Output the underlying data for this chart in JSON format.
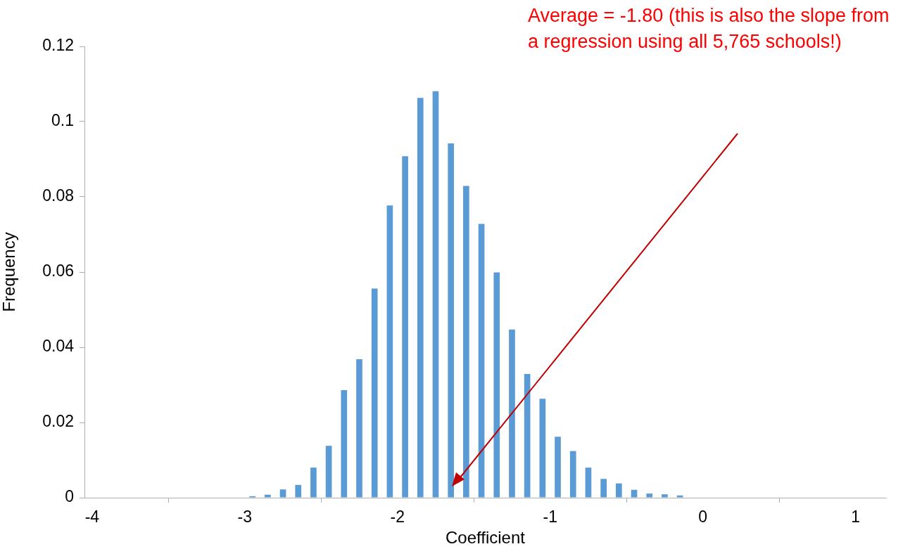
{
  "chart_data": {
    "type": "bar",
    "xlabel": "Coefficient",
    "ylabel": "Frequency",
    "annotations": [
      "Average = -1.80 (this is also the slope from a regression using all 5,765 schools!)"
    ],
    "x": [
      -2.95,
      -2.85,
      -2.75,
      -2.65,
      -2.55,
      -2.45,
      -2.35,
      -2.25,
      -2.15,
      -2.05,
      -1.95,
      -1.85,
      -1.75,
      -1.65,
      -1.55,
      -1.45,
      -1.35,
      -1.25,
      -1.15,
      -1.05,
      -0.95,
      -0.85,
      -0.75,
      -0.65,
      -0.55,
      -0.45,
      -0.35,
      -0.25,
      -0.15
    ],
    "values": [
      0.0004,
      0.0008,
      0.0022,
      0.0034,
      0.008,
      0.0138,
      0.0286,
      0.0368,
      0.0556,
      0.0777,
      0.0908,
      0.1063,
      0.1081,
      0.0942,
      0.0829,
      0.0728,
      0.0599,
      0.0447,
      0.0329,
      0.0263,
      0.0162,
      0.0124,
      0.008,
      0.005,
      0.0038,
      0.0021,
      0.0011,
      0.0009,
      0.0006
    ],
    "color": "#5b9bd5",
    "xlim": [
      -4.05,
      1.2
    ],
    "xticks": [
      -4,
      -3,
      -2,
      -1,
      0,
      1
    ],
    "ylim": [
      0,
      0.12
    ],
    "yticks": [
      0,
      0.02,
      0.04,
      0.06,
      0.08,
      0.1,
      0.12
    ]
  }
}
